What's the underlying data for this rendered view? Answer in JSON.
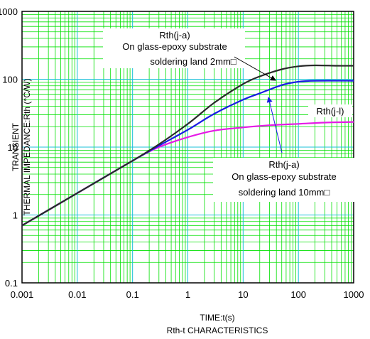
{
  "chart_data": {
    "type": "line",
    "title": "Rth-t CHARACTERISTICS",
    "xlabel": "TIME:t(s)",
    "ylabel_line1": "TRANSIENT",
    "ylabel_line2": "THERMAL IMPEDANCE:Rth (°C/W)",
    "x_scale": "log",
    "y_scale": "log",
    "xlim": [
      0.001,
      1000
    ],
    "ylim": [
      0.1,
      1000
    ],
    "x_ticks": [
      "0.001",
      "0.01",
      "0.1",
      "1",
      "10",
      "100",
      "1000"
    ],
    "y_ticks": [
      "0.1",
      "1",
      "10",
      "100",
      "1000"
    ],
    "grid": true,
    "colors": {
      "grid": "#00e000",
      "grid_major": "#18c0d8",
      "frame": "#000000"
    },
    "series": [
      {
        "name": "Rth(j-a) On glass-epoxy substrate soldering land 2mm□",
        "color": "#2a2a2a",
        "points": [
          [
            0.001,
            0.7
          ],
          [
            0.01,
            2.1
          ],
          [
            0.1,
            6.3
          ],
          [
            0.3,
            11
          ],
          [
            1,
            22
          ],
          [
            3,
            45
          ],
          [
            10,
            85
          ],
          [
            20,
            110
          ],
          [
            50,
            140
          ],
          [
            100,
            155
          ],
          [
            200,
            160
          ],
          [
            500,
            158
          ],
          [
            1000,
            158
          ]
        ]
      },
      {
        "name": "Rth(j-a) On glass-epoxy substrate soldering land 10mm□",
        "color": "#1a1ae6",
        "points": [
          [
            0.001,
            0.7
          ],
          [
            0.01,
            2.1
          ],
          [
            0.1,
            6.3
          ],
          [
            0.3,
            10.5
          ],
          [
            1,
            18
          ],
          [
            3,
            31
          ],
          [
            10,
            50
          ],
          [
            20,
            62
          ],
          [
            50,
            82
          ],
          [
            100,
            92
          ],
          [
            200,
            95
          ],
          [
            1000,
            95
          ]
        ]
      },
      {
        "name": "Rth(j-l)",
        "color": "#e61ae6",
        "points": [
          [
            0.001,
            0.7
          ],
          [
            0.01,
            2.1
          ],
          [
            0.1,
            6.3
          ],
          [
            0.3,
            10
          ],
          [
            1,
            14
          ],
          [
            3,
            17.5
          ],
          [
            10,
            19.5
          ],
          [
            30,
            21
          ],
          [
            100,
            22
          ],
          [
            300,
            23
          ],
          [
            1000,
            23.5
          ]
        ]
      }
    ],
    "annotations": [
      {
        "lines": [
          "Rth(j-a)",
          "On glass-epoxy substrate",
          "soldering land 2mm□"
        ]
      },
      {
        "lines": [
          "Rth(j-l)"
        ]
      },
      {
        "lines": [
          "Rth(j-a)",
          "On glass-epoxy substrate",
          "soldering land 10mm□"
        ]
      }
    ]
  }
}
